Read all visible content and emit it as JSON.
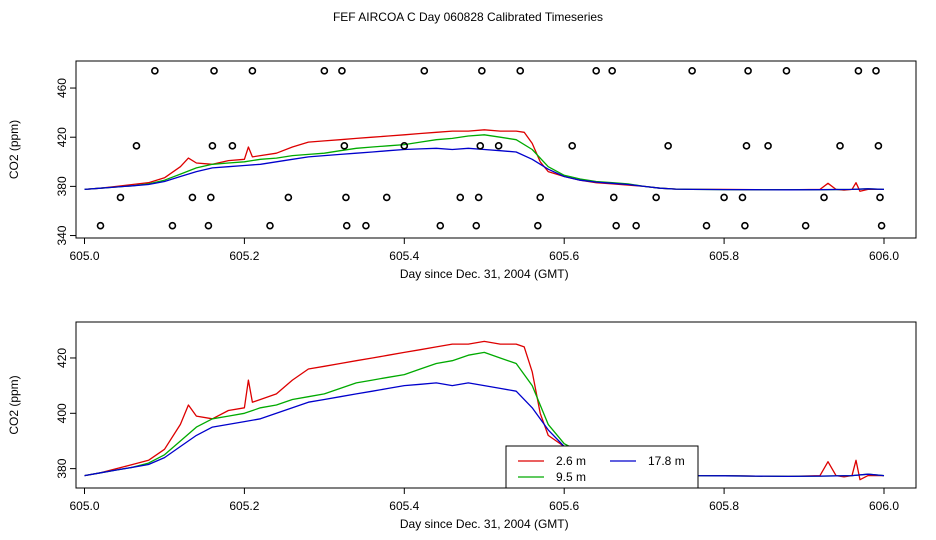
{
  "title": "FEF AIRCOA C  Day 060828  Calibrated Timeseries",
  "colors": {
    "s1": "#dd0000",
    "s2": "#00aa00",
    "s3": "#0000cc",
    "frame": "#000000"
  },
  "chart_data": [
    {
      "type": "scatter+line",
      "xlabel": "Day since Dec. 31, 2004 (GMT)",
      "ylabel": "CO2 (ppm)",
      "xlim": [
        605.0,
        606.0
      ],
      "ylim": [
        338,
        482
      ],
      "xticks": [
        605.0,
        605.2,
        605.4,
        605.6,
        605.8,
        606.0
      ],
      "xtick_labels": [
        "605.0",
        "605.2",
        "605.4",
        "605.6",
        "605.8",
        "606.0"
      ],
      "yticks": [
        340,
        380,
        420,
        460
      ],
      "ytick_labels": [
        "340",
        "380",
        "420",
        "460"
      ],
      "calibration_points": [
        [
          605.02,
          348
        ],
        [
          605.045,
          371
        ],
        [
          605.065,
          413
        ],
        [
          605.088,
          474
        ],
        [
          605.11,
          348
        ],
        [
          605.135,
          371
        ],
        [
          605.155,
          348
        ],
        [
          605.158,
          371
        ],
        [
          605.16,
          413
        ],
        [
          605.162,
          474
        ],
        [
          605.185,
          413
        ],
        [
          605.21,
          474
        ],
        [
          605.232,
          348
        ],
        [
          605.255,
          371
        ],
        [
          605.3,
          474
        ],
        [
          605.322,
          474
        ],
        [
          605.325,
          413
        ],
        [
          605.327,
          371
        ],
        [
          605.328,
          348
        ],
        [
          605.352,
          348
        ],
        [
          605.378,
          371
        ],
        [
          605.4,
          413
        ],
        [
          605.425,
          474
        ],
        [
          605.445,
          348
        ],
        [
          605.47,
          371
        ],
        [
          605.49,
          348
        ],
        [
          605.493,
          371
        ],
        [
          605.495,
          413
        ],
        [
          605.497,
          474
        ],
        [
          605.518,
          413
        ],
        [
          605.545,
          474
        ],
        [
          605.567,
          348
        ],
        [
          605.57,
          371
        ],
        [
          605.61,
          413
        ],
        [
          605.64,
          474
        ],
        [
          605.66,
          474
        ],
        [
          605.662,
          371
        ],
        [
          605.665,
          348
        ],
        [
          605.69,
          348
        ],
        [
          605.715,
          371
        ],
        [
          605.73,
          413
        ],
        [
          605.76,
          474
        ],
        [
          605.778,
          348
        ],
        [
          605.8,
          371
        ],
        [
          605.823,
          371
        ],
        [
          605.826,
          348
        ],
        [
          605.828,
          413
        ],
        [
          605.83,
          474
        ],
        [
          605.855,
          413
        ],
        [
          605.878,
          474
        ],
        [
          605.902,
          348
        ],
        [
          605.925,
          371
        ],
        [
          605.945,
          413
        ],
        [
          605.968,
          474
        ],
        [
          605.99,
          474
        ],
        [
          605.993,
          413
        ],
        [
          605.995,
          371
        ],
        [
          605.997,
          348
        ]
      ]
    },
    {
      "type": "line",
      "xlabel": "Day since Dec. 31, 2004 (GMT)",
      "ylabel": "CO2 (ppm)",
      "xlim": [
        605.0,
        606.0
      ],
      "ylim": [
        373,
        433
      ],
      "xticks": [
        605.0,
        605.2,
        605.4,
        605.6,
        605.8,
        606.0
      ],
      "xtick_labels": [
        "605.0",
        "605.2",
        "605.4",
        "605.6",
        "605.8",
        "606.0"
      ],
      "yticks": [
        380,
        400,
        420
      ],
      "ytick_labels": [
        "380",
        "400",
        "420"
      ],
      "legend": {
        "placement": "bottom-center",
        "entries": [
          "2.6 m",
          "9.5 m",
          "17.8 m"
        ]
      }
    }
  ],
  "series": [
    {
      "name": "2.6 m",
      "color_key": "s1",
      "x": [
        605.0,
        605.02,
        605.04,
        605.06,
        605.08,
        605.1,
        605.12,
        605.13,
        605.14,
        605.16,
        605.18,
        605.2,
        605.205,
        605.21,
        605.22,
        605.24,
        605.26,
        605.28,
        605.3,
        605.32,
        605.34,
        605.36,
        605.38,
        605.4,
        605.42,
        605.44,
        605.46,
        605.48,
        605.5,
        605.52,
        605.54,
        605.55,
        605.56,
        605.57,
        605.58,
        605.6,
        605.62,
        605.64,
        605.66,
        605.68,
        605.7,
        605.72,
        605.74,
        605.76,
        605.8,
        605.84,
        605.88,
        605.92,
        605.93,
        605.94,
        605.95,
        605.96,
        605.965,
        605.97,
        605.98,
        606.0
      ],
      "y": [
        377.5,
        378.5,
        380,
        381.5,
        383,
        387,
        396,
        403,
        399,
        398,
        401,
        402,
        412,
        404,
        405,
        407,
        412,
        416,
        417,
        418,
        419,
        420,
        421,
        422,
        423,
        424,
        425,
        425,
        426,
        425,
        425,
        424,
        415,
        400,
        392,
        388,
        385,
        383,
        382,
        381,
        380,
        378.5,
        377.8,
        377.5,
        377.5,
        377.3,
        377.2,
        377.5,
        382.5,
        377.5,
        377,
        377.5,
        383,
        376,
        377.5,
        377.5
      ]
    },
    {
      "name": "9.5 m",
      "color_key": "s2",
      "x": [
        605.0,
        605.02,
        605.04,
        605.06,
        605.08,
        605.1,
        605.12,
        605.14,
        605.16,
        605.18,
        605.2,
        605.22,
        605.24,
        605.26,
        605.28,
        605.3,
        605.32,
        605.34,
        605.36,
        605.38,
        605.4,
        605.42,
        605.44,
        605.46,
        605.48,
        605.5,
        605.52,
        605.54,
        605.56,
        605.58,
        605.6,
        605.62,
        605.64,
        605.66,
        605.68,
        605.7,
        605.72,
        605.74,
        605.76,
        605.8,
        605.84,
        605.88,
        605.92,
        605.96,
        605.98,
        606.0
      ],
      "y": [
        377.5,
        378.5,
        379.5,
        380.5,
        382,
        385,
        390,
        395,
        398,
        399,
        400,
        402,
        403,
        405,
        406,
        407,
        409,
        411,
        412,
        413,
        414,
        416,
        418,
        419,
        421,
        422,
        420,
        418,
        410,
        396,
        389,
        386,
        384,
        383,
        382,
        380,
        378.5,
        377.8,
        377.5,
        377.4,
        377.3,
        377.2,
        377.3,
        377.5,
        378,
        377.5
      ]
    },
    {
      "name": "17.8 m",
      "color_key": "s3",
      "x": [
        605.0,
        605.02,
        605.04,
        605.06,
        605.08,
        605.1,
        605.12,
        605.14,
        605.16,
        605.18,
        605.2,
        605.22,
        605.24,
        605.26,
        605.28,
        605.3,
        605.32,
        605.34,
        605.36,
        605.38,
        605.4,
        605.42,
        605.44,
        605.46,
        605.48,
        605.5,
        605.52,
        605.54,
        605.56,
        605.58,
        605.6,
        605.62,
        605.64,
        605.66,
        605.68,
        605.7,
        605.72,
        605.74,
        605.76,
        605.8,
        605.84,
        605.88,
        605.92,
        605.96,
        605.98,
        606.0
      ],
      "y": [
        377.5,
        378.5,
        379.5,
        380.5,
        381.5,
        384,
        388,
        392,
        395,
        396,
        397,
        398,
        400,
        402,
        404,
        405,
        406,
        407,
        408,
        409,
        410,
        410.5,
        411,
        410,
        411,
        410,
        409,
        408,
        402,
        394,
        388,
        385,
        383.5,
        382.5,
        381.5,
        380,
        378.5,
        377.8,
        377.5,
        377.4,
        377.3,
        377.2,
        377.3,
        377.5,
        378,
        377.5
      ]
    }
  ]
}
